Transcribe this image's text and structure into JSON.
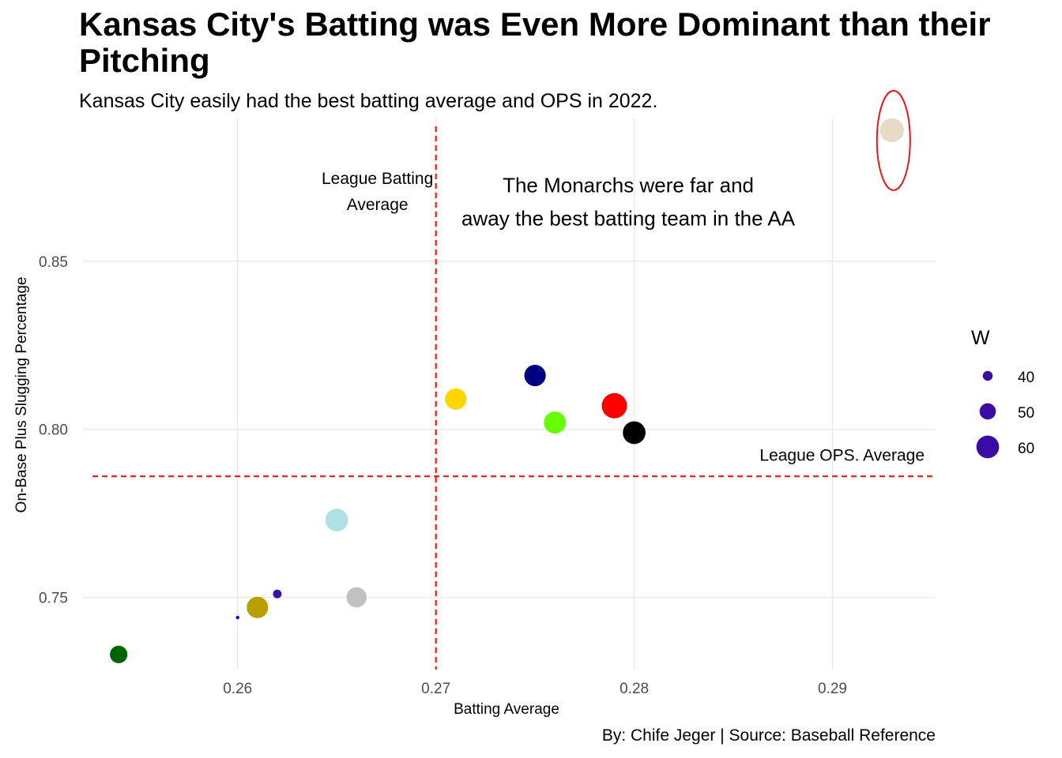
{
  "header": {
    "title": "Kansas City's Batting was Even More Dominant than their Pitching",
    "subtitle": "Kansas City easily had the best batting average and OPS in 2022."
  },
  "caption": "By: Chife Jeger | Source: Baseball Reference",
  "chart_data": {
    "type": "scatter",
    "xlabel": "Batting Average",
    "ylabel": "On-Base Plus Slugging Percentage",
    "xlim": [
      0.2522,
      0.2952
    ],
    "ylim": [
      0.7285,
      0.8925
    ],
    "xticks": [
      0.26,
      0.27,
      0.28,
      0.29
    ],
    "xtick_labels": [
      "0.26",
      "0.27",
      "0.28",
      "0.29"
    ],
    "yticks": [
      0.75,
      0.8,
      0.85
    ],
    "ytick_labels": [
      "0.75",
      "0.80",
      "0.85"
    ],
    "grid": true,
    "reference_lines": [
      {
        "orientation": "vertical",
        "value": 0.27,
        "color": "#ff0000",
        "style": "dashed",
        "label": "League Batting Average",
        "label_lines": [
          "League Batting",
          "Average"
        ]
      },
      {
        "orientation": "horizontal",
        "value": 0.786,
        "color": "#ff0000",
        "style": "dashed",
        "label": "League OPS. Average"
      }
    ],
    "annotation": {
      "lines": [
        "The Monarchs were far and",
        "away the best batting team in the AA"
      ],
      "x": 0.2797,
      "y": 0.8705
    },
    "highlight": {
      "x": 0.293,
      "y": 0.889,
      "color": "#e31a1c"
    },
    "points": [
      {
        "x": 0.293,
        "y": 0.889,
        "w": 62,
        "color": "#e5dcc3"
      },
      {
        "x": 0.275,
        "y": 0.816,
        "w": 58,
        "color": "#000080"
      },
      {
        "x": 0.271,
        "y": 0.809,
        "w": 58,
        "color": "#ffd700"
      },
      {
        "x": 0.279,
        "y": 0.807,
        "w": 64,
        "color": "#ff0000"
      },
      {
        "x": 0.276,
        "y": 0.802,
        "w": 59,
        "color": "#66ff00"
      },
      {
        "x": 0.28,
        "y": 0.799,
        "w": 60,
        "color": "#000000"
      },
      {
        "x": 0.265,
        "y": 0.773,
        "w": 60,
        "color": "#b0e0e6"
      },
      {
        "x": 0.266,
        "y": 0.75,
        "w": 56,
        "color": "#c0c0c0"
      },
      {
        "x": 0.262,
        "y": 0.751,
        "w": 38,
        "color": "#3a0ca3"
      },
      {
        "x": 0.261,
        "y": 0.747,
        "w": 58,
        "color": "#b8a000"
      },
      {
        "x": 0.26,
        "y": 0.744,
        "w": 30,
        "color": "#0000ff"
      },
      {
        "x": 0.254,
        "y": 0.733,
        "w": 52,
        "color": "#006400"
      }
    ],
    "legend": {
      "title": "W",
      "placement": "right",
      "color": "#3a0ca3",
      "entries": [
        {
          "label": "40",
          "w": 40
        },
        {
          "label": "50",
          "w": 50
        },
        {
          "label": "60",
          "w": 60
        }
      ]
    }
  }
}
